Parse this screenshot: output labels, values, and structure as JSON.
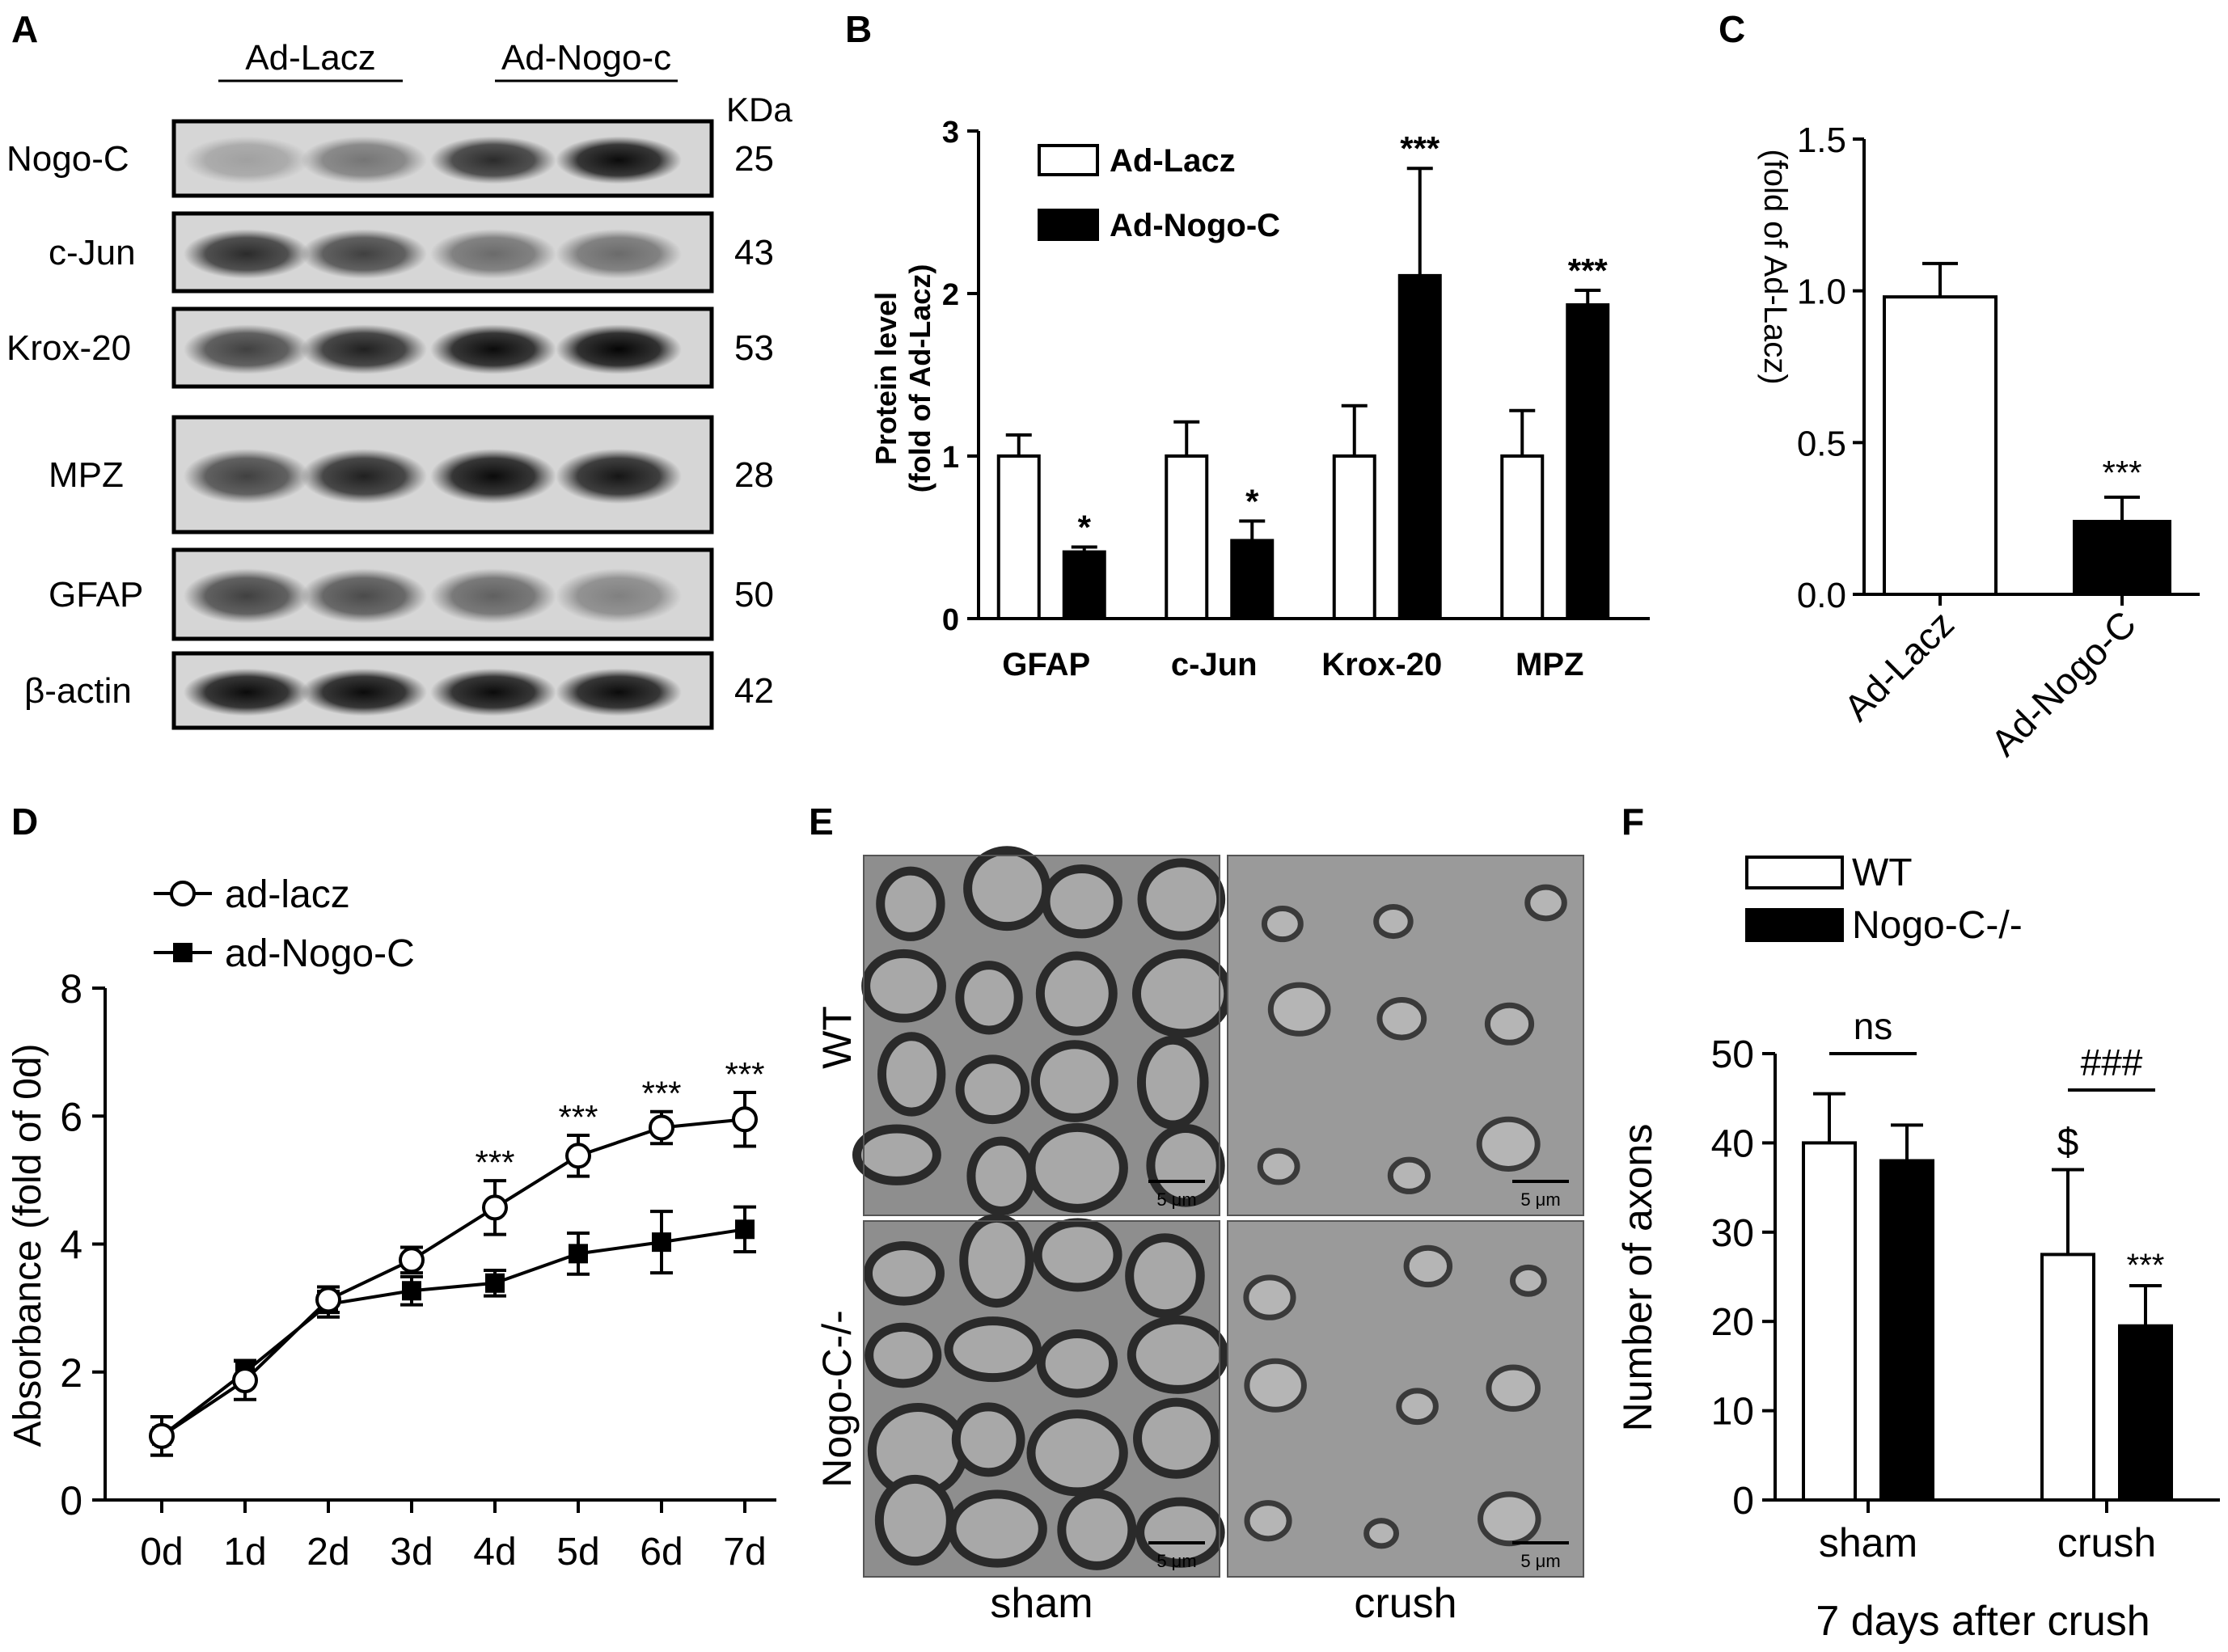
{
  "panels": {
    "A": {
      "label": "A",
      "groups": [
        "Ad-Lacz",
        "Ad-Nogo-c"
      ],
      "kda_header": "KDa",
      "rows": [
        {
          "protein": "Nogo-C",
          "kda": "25"
        },
        {
          "protein": "c-Jun",
          "kda": "43"
        },
        {
          "protein": "Krox-20",
          "kda": "53"
        },
        {
          "protein": "MPZ",
          "kda": "28"
        },
        {
          "protein": "GFAP",
          "kda": "50"
        },
        {
          "protein": "β-actin",
          "kda": "42"
        }
      ]
    },
    "B": {
      "label": "B"
    },
    "C": {
      "label": "C"
    },
    "D": {
      "label": "D"
    },
    "E": {
      "label": "E",
      "row_labels": [
        "WT",
        "Nogo-C-/-"
      ],
      "col_labels": [
        "sham",
        "crush"
      ],
      "scale_bar": "5 μm"
    },
    "F": {
      "label": "F"
    }
  },
  "chart_data": [
    {
      "id": "B",
      "type": "bar",
      "categories": [
        "GFAP",
        "c-Jun",
        "Krox-20",
        "MPZ"
      ],
      "series": [
        {
          "name": "Ad-Lacz",
          "values": [
            1.0,
            1.0,
            1.0,
            1.0
          ],
          "errors": [
            0.13,
            0.21,
            0.31,
            0.28
          ],
          "fill": "#ffffff"
        },
        {
          "name": "Ad-Nogo-C",
          "values": [
            0.41,
            0.48,
            2.11,
            1.93
          ],
          "errors": [
            0.03,
            0.12,
            0.66,
            0.09
          ],
          "fill": "#000000"
        }
      ],
      "significance": [
        "*",
        "*",
        "***",
        "***"
      ],
      "ylabel": [
        "Protein level",
        "(fold of Ad-Lacz)"
      ],
      "ylim": [
        0,
        3
      ],
      "yticks": [
        0,
        1,
        2,
        3
      ]
    },
    {
      "id": "C",
      "type": "bar",
      "categories": [
        "Ad-Lacz",
        "Ad-Nogo-C"
      ],
      "values": [
        0.98,
        0.24
      ],
      "errors": [
        0.11,
        0.08
      ],
      "fills": [
        "#ffffff",
        "#000000"
      ],
      "significance": [
        "",
        "***"
      ],
      "ylabel": "(fold of Ad-Lacz)",
      "ylim": [
        0,
        1.5
      ],
      "yticks": [
        "0.0",
        "0.5",
        "1.0",
        "1.5"
      ]
    },
    {
      "id": "D",
      "type": "line",
      "x": [
        "0d",
        "1d",
        "2d",
        "3d",
        "4d",
        "5d",
        "6d",
        "7d"
      ],
      "series": [
        {
          "name": "ad-lacz",
          "values": [
            1.0,
            1.87,
            3.13,
            3.75,
            4.57,
            5.38,
            5.82,
            5.95
          ],
          "errors": [
            0.3,
            0.3,
            0.2,
            0.2,
            0.42,
            0.32,
            0.25,
            0.42
          ],
          "marker": "open-circle"
        },
        {
          "name": "ad-Nogo-C",
          "values": [
            1.0,
            2.0,
            3.06,
            3.27,
            3.39,
            3.85,
            4.03,
            4.23
          ],
          "errors": [
            0.3,
            0.18,
            0.2,
            0.22,
            0.2,
            0.32,
            0.48,
            0.35
          ],
          "marker": "filled-square"
        }
      ],
      "significance": [
        "",
        "",
        "",
        "",
        "***",
        "***",
        "***",
        "***"
      ],
      "ylabel": "Absorbance (fold of 0d)",
      "ylim": [
        0,
        8
      ],
      "yticks": [
        0,
        2,
        4,
        6,
        8
      ]
    },
    {
      "id": "F",
      "type": "bar",
      "categories": [
        "sham",
        "crush"
      ],
      "series": [
        {
          "name": "WT",
          "values": [
            40,
            27.5
          ],
          "errors": [
            5.5,
            9.5
          ],
          "fill": "#ffffff"
        },
        {
          "name": "Nogo-C-/-",
          "values": [
            38,
            19.5
          ],
          "errors": [
            4,
            4.5
          ],
          "fill": "#000000"
        }
      ],
      "annotations": {
        "sham_bracket": "ns",
        "crush_bracket": "###",
        "crush_wt": "$",
        "crush_ko": "***"
      },
      "xlabel": "7 days after crush",
      "ylabel": "Number of axons",
      "ylim": [
        0,
        50
      ],
      "yticks": [
        0,
        10,
        20,
        30,
        40,
        50
      ]
    }
  ]
}
